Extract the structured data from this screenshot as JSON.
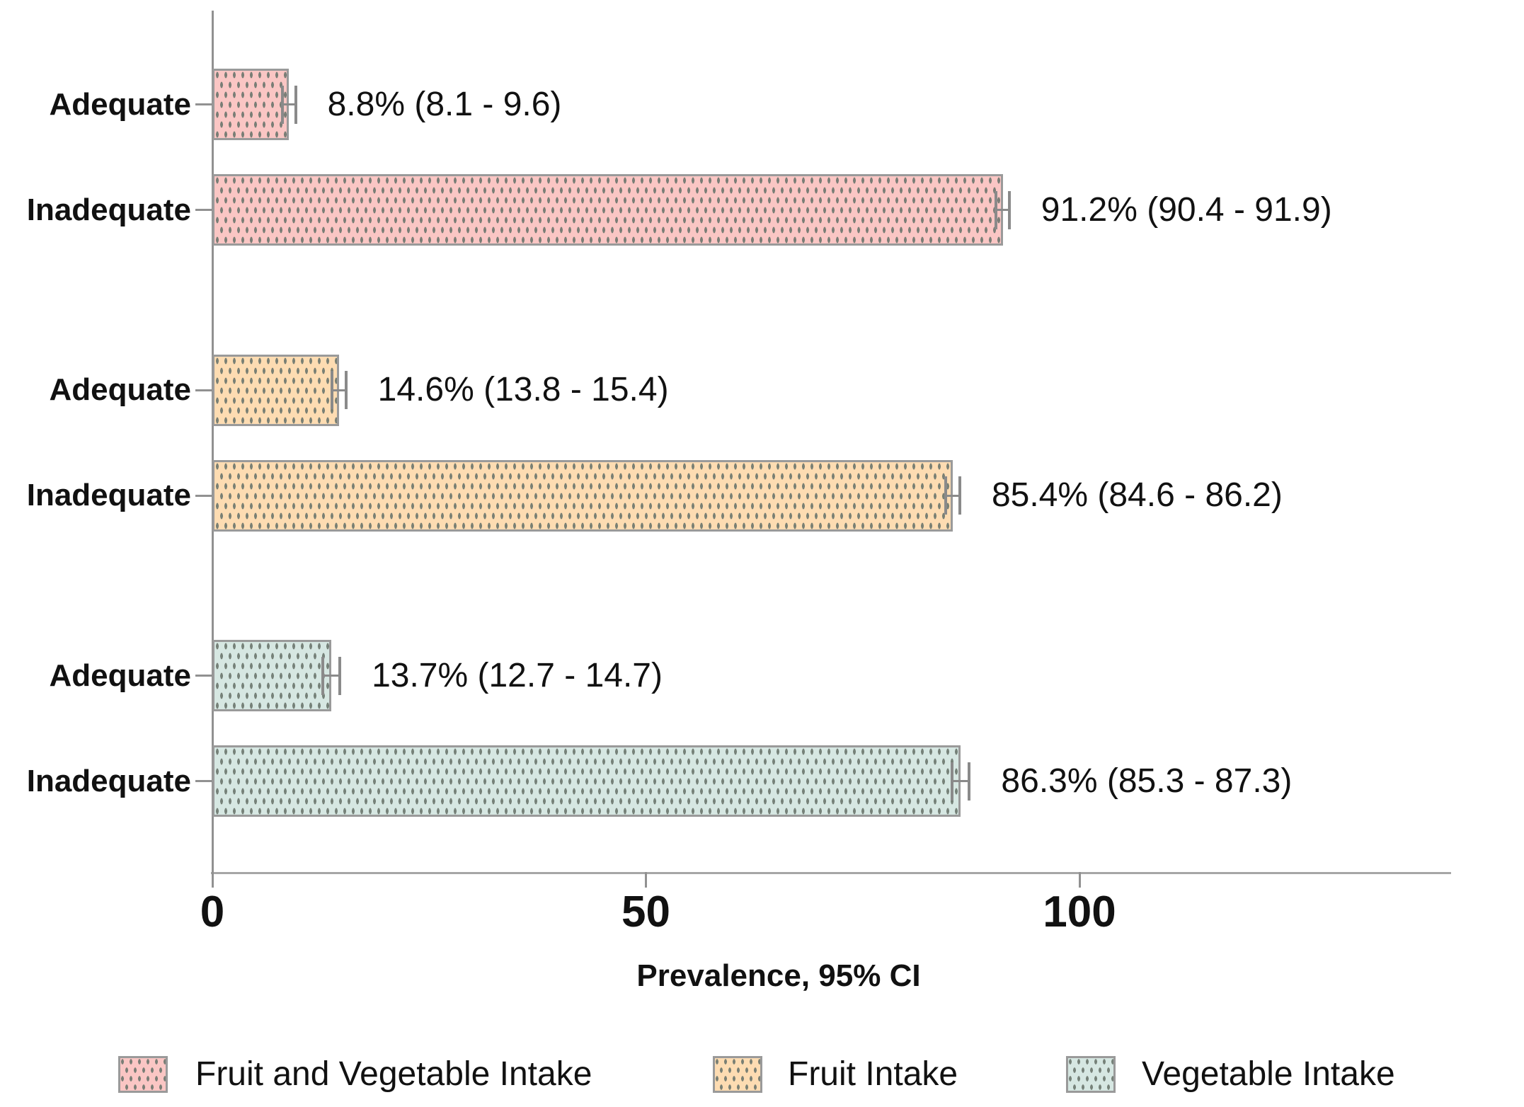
{
  "chart_data": {
    "type": "bar",
    "orientation": "horizontal",
    "title": "",
    "xlabel": "Prevalence, 95% CI",
    "ylabel": "",
    "xlim": [
      0,
      143
    ],
    "x_ticks": [
      "0",
      "50",
      "100"
    ],
    "x_tick_values": [
      0,
      50,
      100
    ],
    "grid": false,
    "legend_position": "bottom",
    "bar_style": "dotted-fill with gray border and 95% CI error bars",
    "groups": [
      {
        "name": "Fruit and Vegetable Intake",
        "color": "#fac6c4",
        "bars": [
          {
            "category": "Adequate",
            "value": 8.8,
            "ci_low": 8.1,
            "ci_high": 9.6,
            "label": "8.8% (8.1 - 9.6)"
          },
          {
            "category": "Inadequate",
            "value": 91.2,
            "ci_low": 90.4,
            "ci_high": 91.9,
            "label": "91.2% (90.4 - 91.9)"
          }
        ]
      },
      {
        "name": "Fruit Intake",
        "color": "#fddcb2",
        "bars": [
          {
            "category": "Adequate",
            "value": 14.6,
            "ci_low": 13.8,
            "ci_high": 15.4,
            "label": "14.6% (13.8 - 15.4)"
          },
          {
            "category": "Inadequate",
            "value": 85.4,
            "ci_low": 84.6,
            "ci_high": 86.2,
            "label": "85.4% (84.6 - 86.2)"
          }
        ]
      },
      {
        "name": "Vegetable Intake",
        "color": "#d6e7e2",
        "bars": [
          {
            "category": "Adequate",
            "value": 13.7,
            "ci_low": 12.7,
            "ci_high": 14.7,
            "label": "13.7% (12.7 - 14.7)"
          },
          {
            "category": "Inadequate",
            "value": 86.3,
            "ci_low": 85.3,
            "ci_high": 87.3,
            "label": "86.3% (85.3 - 87.3)"
          }
        ]
      }
    ],
    "legend": [
      {
        "label": "Fruit and Vegetable Intake",
        "color": "#fac6c4"
      },
      {
        "label": "Fruit Intake",
        "color": "#fddcb2"
      },
      {
        "label": "Vegetable Intake",
        "color": "#d6e7e2"
      }
    ]
  },
  "colors": {
    "background": "#ffffff",
    "bar_border": "#9a9a9a",
    "error_bar": "#8a8a8a",
    "axis": "#919191",
    "dot_pattern": "rgba(108,118,110,0.9)",
    "text": "#111111"
  }
}
